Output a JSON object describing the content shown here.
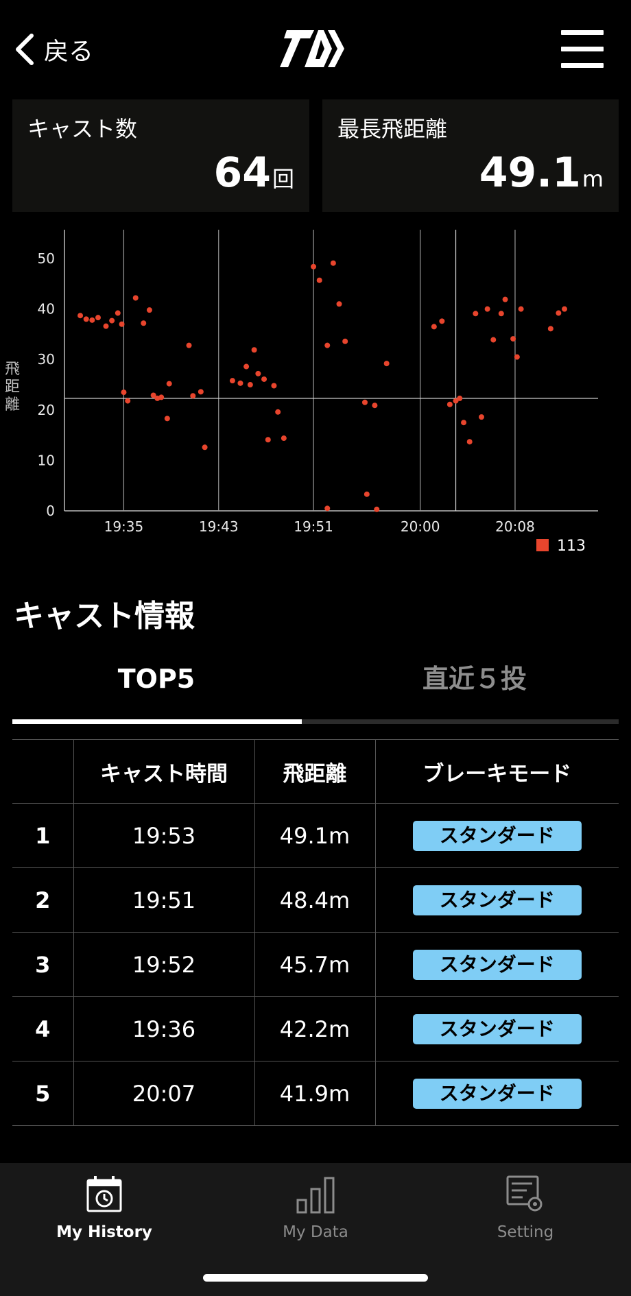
{
  "header": {
    "back_label": "戻る",
    "logo": "daiwa-logo-icon",
    "menu": "hamburger-menu-icon"
  },
  "stats": {
    "cast_count": {
      "label": "キャスト数",
      "value": "64",
      "unit": "回"
    },
    "max_distance": {
      "label": "最長飛距離",
      "value": "49.1",
      "unit": "m"
    }
  },
  "chart_data": {
    "type": "scatter",
    "ylabel": "飛距離",
    "ylim": [
      0,
      53
    ],
    "yticks": [
      0,
      10,
      20,
      30,
      40,
      50
    ],
    "xlim": [
      "19:30",
      "20:15"
    ],
    "xticks": [
      "19:35",
      "19:43",
      "19:51",
      "20:00",
      "20:08"
    ],
    "grid": "vertical lines at x ticks",
    "reference_line": {
      "x": "20:03",
      "y": 22.3
    },
    "legend": {
      "placement": "bottom-right"
    },
    "series": [
      {
        "name": "113",
        "color": "#e8452d",
        "points": [
          [
            "19:31:20",
            38.7
          ],
          [
            "19:31:50",
            38.0
          ],
          [
            "19:32:20",
            37.8
          ],
          [
            "19:32:50",
            38.3
          ],
          [
            "19:33:30",
            36.6
          ],
          [
            "19:34:00",
            37.7
          ],
          [
            "19:34:30",
            39.2
          ],
          [
            "19:34:50",
            37.0
          ],
          [
            "19:35:00",
            23.5
          ],
          [
            "19:35:20",
            21.8
          ],
          [
            "19:36:00",
            42.2
          ],
          [
            "19:36:40",
            37.2
          ],
          [
            "19:37:10",
            39.8
          ],
          [
            "19:37:30",
            22.9
          ],
          [
            "19:37:50",
            22.3
          ],
          [
            "19:38:10",
            22.5
          ],
          [
            "19:38:40",
            18.3
          ],
          [
            "19:38:50",
            25.2
          ],
          [
            "19:40:30",
            32.8
          ],
          [
            "19:40:50",
            22.8
          ],
          [
            "19:41:30",
            23.6
          ],
          [
            "19:41:50",
            12.6
          ],
          [
            "19:44:10",
            25.8
          ],
          [
            "19:44:50",
            25.3
          ],
          [
            "19:45:20",
            28.6
          ],
          [
            "19:45:40",
            25.0
          ],
          [
            "19:46:00",
            31.9
          ],
          [
            "19:46:20",
            27.2
          ],
          [
            "19:46:50",
            26.1
          ],
          [
            "19:47:10",
            14.1
          ],
          [
            "19:47:40",
            24.8
          ],
          [
            "19:48:00",
            19.6
          ],
          [
            "19:48:30",
            14.4
          ],
          [
            "19:51:00",
            48.4
          ],
          [
            "19:51:30",
            45.7
          ],
          [
            "19:52:10",
            32.8
          ],
          [
            "19:52:10",
            0.5
          ],
          [
            "19:52:40",
            49.1
          ],
          [
            "19:53:10",
            41.0
          ],
          [
            "19:53:40",
            33.6
          ],
          [
            "19:55:20",
            21.5
          ],
          [
            "19:55:30",
            3.3
          ],
          [
            "19:56:10",
            20.9
          ],
          [
            "19:56:20",
            0.3
          ],
          [
            "19:57:10",
            29.2
          ],
          [
            "20:01:10",
            36.5
          ],
          [
            "20:01:50",
            37.6
          ],
          [
            "20:02:30",
            21.1
          ],
          [
            "20:03:00",
            21.8
          ],
          [
            "20:03:20",
            22.3
          ],
          [
            "20:03:40",
            17.5
          ],
          [
            "20:04:10",
            13.7
          ],
          [
            "20:04:40",
            39.1
          ],
          [
            "20:05:10",
            18.6
          ],
          [
            "20:05:40",
            40.0
          ],
          [
            "20:06:10",
            33.9
          ],
          [
            "20:06:50",
            39.1
          ],
          [
            "20:07:10",
            41.9
          ],
          [
            "20:07:50",
            34.1
          ],
          [
            "20:08:10",
            30.5
          ],
          [
            "20:08:30",
            40.0
          ],
          [
            "20:11:00",
            36.1
          ],
          [
            "20:11:40",
            39.2
          ],
          [
            "20:12:10",
            40.0
          ]
        ]
      }
    ]
  },
  "section": {
    "title": "キャスト情報"
  },
  "tabs": [
    {
      "label": "TOP5",
      "active": true
    },
    {
      "label": "直近５投",
      "active": false
    }
  ],
  "table": {
    "headers": [
      "",
      "キャスト時間",
      "飛距離",
      "ブレーキモード"
    ],
    "rows": [
      {
        "rank": "1",
        "time": "19:53",
        "distance": "49.1m",
        "mode": "スタンダード"
      },
      {
        "rank": "2",
        "time": "19:51",
        "distance": "48.4m",
        "mode": "スタンダード"
      },
      {
        "rank": "3",
        "time": "19:52",
        "distance": "45.7m",
        "mode": "スタンダード"
      },
      {
        "rank": "4",
        "time": "19:36",
        "distance": "42.2m",
        "mode": "スタンダード"
      },
      {
        "rank": "5",
        "time": "20:07",
        "distance": "41.9m",
        "mode": "スタンダード"
      }
    ]
  },
  "nav": [
    {
      "label": "My History",
      "icon": "calendar-history-icon",
      "active": true
    },
    {
      "label": "My Data",
      "icon": "bar-chart-icon",
      "active": false
    },
    {
      "label": "Setting",
      "icon": "settings-sliders-icon",
      "active": false
    }
  ],
  "colors": {
    "accent": "#e8452d",
    "badge": "#7fcdf5",
    "card": "#121210",
    "nav_bg": "#181818"
  }
}
